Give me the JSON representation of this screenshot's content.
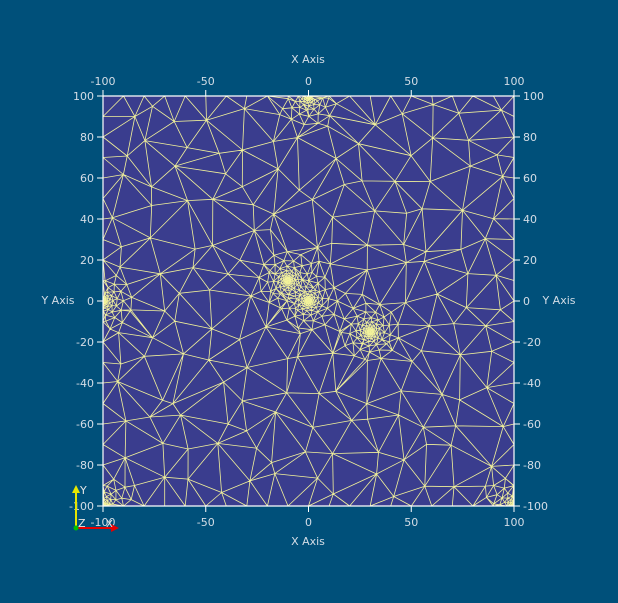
{
  "view": {
    "background_color": "#00507a",
    "domain_fill_color": "#3a3d8e",
    "mesh_color": "#f2f29a",
    "axis_text_color": "#d4dde6",
    "axis_line_color": "#ffffff"
  },
  "axes": {
    "x_title_top": "X Axis",
    "x_title_bottom": "X Axis",
    "y_title_left": "Y Axis",
    "y_title_right": "Y Axis",
    "x_ticks": [
      "-100",
      "-50",
      "0",
      "50",
      "100"
    ],
    "y_ticks": [
      "100",
      "80",
      "60",
      "40",
      "20",
      "0",
      "-20",
      "-40",
      "-60",
      "-80",
      "-100"
    ],
    "x_range": [
      -100,
      100
    ],
    "y_range": [
      -100,
      100
    ]
  },
  "mesh": {
    "description_type": "triangulated-mesh",
    "refinement_centers": [
      {
        "x": -10,
        "y": 10,
        "density": "high"
      },
      {
        "x": 0,
        "y": 0,
        "density": "high"
      },
      {
        "x": 30,
        "y": -15,
        "density": "high"
      },
      {
        "x": 0,
        "y": 100,
        "density": "high"
      },
      {
        "x": -100,
        "y": 0,
        "density": "high"
      },
      {
        "x": -100,
        "y": -100,
        "density": "high"
      },
      {
        "x": 100,
        "y": -100,
        "density": "high"
      }
    ]
  },
  "orientation_triad": {
    "y_label": "Y",
    "z_label": "Z",
    "x_label": "X",
    "y_color": "#e6e600",
    "x_color": "#e60000",
    "z_color": "#00c000"
  }
}
